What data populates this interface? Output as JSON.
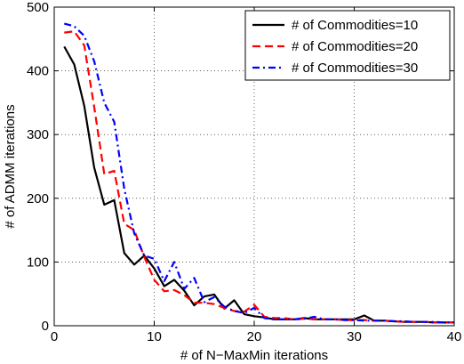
{
  "chart_data": {
    "type": "line",
    "title": "",
    "xlabel": "# of N−MaxMin iterations",
    "ylabel": "# of ADMM iterations",
    "xlim": [
      0,
      40
    ],
    "ylim": [
      0,
      500
    ],
    "xticks": [
      0,
      10,
      20,
      30,
      40
    ],
    "yticks": [
      0,
      100,
      200,
      300,
      400,
      500
    ],
    "grid": true,
    "legend_position": "top-right",
    "series": [
      {
        "name": "# of Commodities=10",
        "color": "#000000",
        "dash": "solid",
        "x": [
          1,
          2,
          3,
          4,
          5,
          6,
          7,
          8,
          9,
          10,
          11,
          12,
          13,
          14,
          15,
          16,
          17,
          18,
          19,
          20,
          21,
          22,
          23,
          24,
          25,
          26,
          27,
          28,
          29,
          30,
          31,
          32,
          33,
          34,
          35,
          36,
          37,
          38,
          39,
          40
        ],
        "y": [
          438,
          410,
          345,
          248,
          190,
          197,
          114,
          96,
          110,
          90,
          62,
          72,
          55,
          32,
          46,
          49,
          27,
          40,
          18,
          15,
          13,
          10,
          10,
          10,
          12,
          10,
          10,
          10,
          10,
          10,
          16,
          8,
          8,
          7,
          6,
          6,
          6,
          5,
          5,
          5
        ]
      },
      {
        "name": "# of Commodities=20",
        "color": "#ff0000",
        "dash": "dashed",
        "x": [
          1,
          2,
          3,
          4,
          5,
          6,
          7,
          8,
          9,
          10,
          11,
          12,
          13,
          14,
          15,
          16,
          17,
          18,
          19,
          20,
          21,
          22,
          23,
          24,
          25,
          26,
          27,
          28,
          29,
          30,
          31,
          32,
          33,
          34,
          35,
          36,
          37,
          38,
          39,
          40
        ],
        "y": [
          460,
          462,
          440,
          343,
          238,
          243,
          160,
          150,
          108,
          72,
          54,
          56,
          48,
          36,
          36,
          34,
          28,
          23,
          22,
          33,
          14,
          12,
          12,
          10,
          11,
          10,
          10,
          10,
          9,
          9,
          9,
          8,
          8,
          7,
          6,
          6,
          6,
          5,
          5,
          5
        ]
      },
      {
        "name": "# of Commodities=30",
        "color": "#0000ff",
        "dash": "dashdot",
        "x": [
          1,
          2,
          3,
          4,
          5,
          6,
          7,
          8,
          9,
          10,
          11,
          12,
          13,
          14,
          15,
          16,
          17,
          18,
          19,
          20,
          21,
          22,
          23,
          24,
          25,
          26,
          27,
          28,
          29,
          30,
          31,
          32,
          33,
          34,
          35,
          36,
          37,
          38,
          39,
          40
        ],
        "y": [
          474,
          470,
          455,
          415,
          350,
          320,
          215,
          145,
          110,
          105,
          70,
          100,
          58,
          75,
          37,
          45,
          30,
          23,
          20,
          28,
          12,
          10,
          10,
          10,
          11,
          14,
          10,
          10,
          9,
          9,
          8,
          8,
          8,
          7,
          7,
          6,
          6,
          6,
          5,
          5
        ]
      }
    ]
  }
}
